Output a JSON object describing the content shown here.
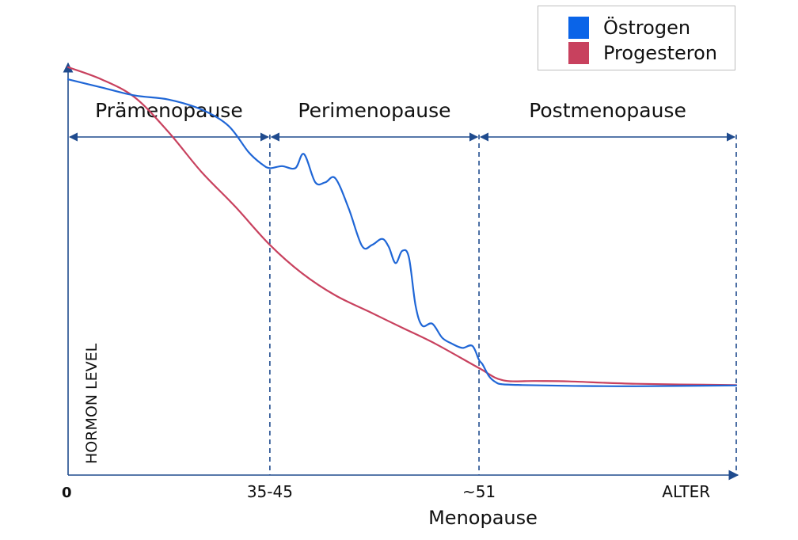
{
  "legend": {
    "items": [
      {
        "label": "Östrogen",
        "color": "#0a64e8"
      },
      {
        "label": "Progesteron",
        "color": "#c8415e"
      }
    ]
  },
  "colors": {
    "axis": "#1f4b8e",
    "phase_line": "#1f4b8e",
    "estrogen": "#1f66d6",
    "progesterone": "#c8415e"
  },
  "chart_data": {
    "type": "line",
    "title": "",
    "xlabel": "Menopause",
    "ylabel": "HORMON LEVEL",
    "xlim": [
      0,
      100
    ],
    "ylim": [
      0,
      100
    ],
    "x_ticks": [
      {
        "x": 0,
        "label": "0",
        "bold": true
      },
      {
        "x": 30.2,
        "label": "35-45"
      },
      {
        "x": 61.5,
        "label": "~51"
      },
      {
        "x": 92.5,
        "label": "ALTER"
      }
    ],
    "phases": [
      {
        "label": "Prämenopause",
        "from": 0,
        "to": 30.2
      },
      {
        "label": "Perimenopause",
        "from": 30.2,
        "to": 61.5
      },
      {
        "label": "Postmenopause",
        "from": 61.5,
        "to": 100
      }
    ],
    "series": [
      {
        "name": "Östrogen",
        "x": [
          0,
          5,
          10,
          15,
          20,
          24,
          27,
          29,
          30.2,
          32,
          34,
          35.3,
          37,
          38.5,
          40,
          42,
          44,
          45.5,
          47,
          48,
          49,
          50,
          51,
          52,
          53,
          54.5,
          56,
          57.5,
          59,
          60.5,
          61.5,
          62,
          63,
          64,
          65,
          68,
          75,
          85,
          100
        ],
        "y": [
          98,
          96,
          94,
          93,
          90.5,
          86.5,
          80,
          77,
          76,
          76.5,
          76,
          79.5,
          72.5,
          72.5,
          73.5,
          66,
          56.7,
          57,
          58.5,
          56.5,
          52.5,
          55.5,
          54,
          42,
          37,
          37.5,
          34,
          32.5,
          31.5,
          32,
          28.5,
          27.5,
          24.5,
          23,
          22.5,
          22.3,
          22.1,
          22,
          22.2
        ]
      },
      {
        "name": "Progesteron",
        "x": [
          0,
          5,
          10,
          15,
          20,
          25,
          30.2,
          35,
          40,
          45,
          50,
          55,
          61.5,
          65,
          70,
          75,
          85,
          100
        ],
        "y": [
          101,
          98,
          93.5,
          85,
          75,
          66.5,
          57,
          50,
          44.5,
          40.5,
          36.5,
          32.5,
          26.5,
          23.5,
          23.3,
          23.2,
          22.6,
          22.3
        ]
      }
    ]
  }
}
